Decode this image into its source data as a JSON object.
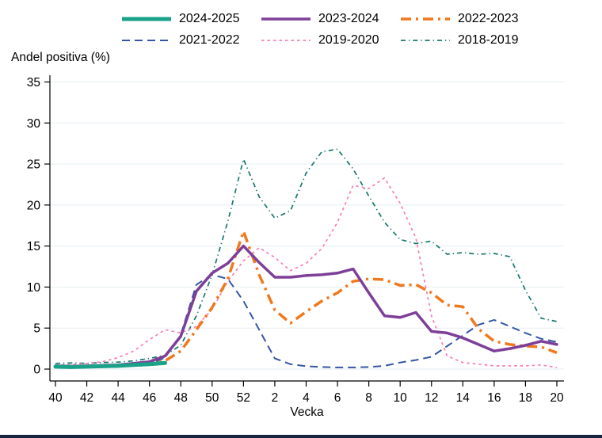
{
  "page": {
    "background": "#ffffff",
    "footer_bar_color": "#16243f"
  },
  "chart_data": {
    "type": "line",
    "title": "Andel positiva (%)",
    "ylabel": "Andel positiva (%)",
    "xlabel": "Vecka",
    "ylim": [
      0,
      35
    ],
    "yticks": [
      0,
      5,
      10,
      15,
      20,
      25,
      30,
      35
    ],
    "grid": "horizontal",
    "gridline_color": "#e5eef1",
    "legend_position": "top-center",
    "categories": [
      "40",
      "41",
      "42",
      "43",
      "44",
      "45",
      "46",
      "47",
      "48",
      "49",
      "50",
      "51",
      "52",
      "1",
      "2",
      "3",
      "4",
      "5",
      "6",
      "7",
      "8",
      "9",
      "10",
      "11",
      "12",
      "13",
      "14",
      "15",
      "16",
      "17",
      "18",
      "19",
      "20"
    ],
    "xtick_labels": [
      "40",
      "42",
      "44",
      "46",
      "48",
      "50",
      "52",
      "2",
      "4",
      "6",
      "8",
      "10",
      "12",
      "14",
      "16",
      "18",
      "20"
    ],
    "legend_rows": [
      [
        "2024-2025",
        "2023-2024",
        "2022-2023"
      ],
      [
        "2021-2022",
        "2019-2020",
        "2018-2019"
      ]
    ],
    "series": [
      {
        "name": "2024-2025",
        "color": "#1aa289",
        "style": "solid-thick",
        "values": [
          0.3,
          0.25,
          0.3,
          0.35,
          0.4,
          0.5,
          0.6,
          0.75,
          null,
          null,
          null,
          null,
          null,
          null,
          null,
          null,
          null,
          null,
          null,
          null,
          null,
          null,
          null,
          null,
          null,
          null,
          null,
          null,
          null,
          null,
          null,
          null,
          null
        ]
      },
      {
        "name": "2023-2024",
        "color": "#7d3f98",
        "style": "solid",
        "values": [
          0.4,
          0.35,
          0.4,
          0.45,
          0.5,
          0.7,
          0.9,
          1.6,
          4.0,
          9.5,
          11.7,
          12.9,
          15.0,
          13.0,
          11.2,
          11.2,
          11.4,
          11.5,
          11.7,
          12.2,
          9.3,
          6.5,
          6.3,
          6.9,
          4.6,
          4.4,
          3.8,
          3.0,
          2.2,
          2.5,
          2.9,
          3.4,
          3.0
        ]
      },
      {
        "name": "2022-2023",
        "color": "#f0791e",
        "style": "dash-dot-thick",
        "values": [
          0.3,
          0.3,
          0.35,
          0.4,
          0.45,
          0.5,
          0.7,
          1.0,
          2.2,
          4.8,
          7.5,
          11.0,
          16.8,
          11.5,
          7.2,
          5.6,
          7.0,
          8.3,
          9.3,
          10.7,
          11.0,
          10.9,
          10.2,
          10.3,
          9.3,
          7.8,
          7.6,
          4.9,
          3.4,
          3.0,
          2.8,
          2.7,
          2.0
        ]
      },
      {
        "name": "2021-2022",
        "color": "#3656a5",
        "style": "dashed",
        "values": [
          0.25,
          0.25,
          0.3,
          0.3,
          0.35,
          0.4,
          0.6,
          1.4,
          4.2,
          10.3,
          11.5,
          11.0,
          8.3,
          4.8,
          1.3,
          0.6,
          0.35,
          0.25,
          0.2,
          0.2,
          0.25,
          0.4,
          0.8,
          1.1,
          1.5,
          2.8,
          4.1,
          5.4,
          6.0,
          5.2,
          4.4,
          3.7,
          3.3
        ]
      },
      {
        "name": "2019-2020",
        "color": "#f87eb5",
        "style": "dotted",
        "values": [
          0.5,
          0.55,
          0.7,
          0.9,
          1.4,
          2.2,
          3.6,
          4.8,
          4.4,
          5.2,
          7.3,
          10.7,
          13.2,
          14.8,
          13.6,
          12.0,
          12.9,
          14.7,
          17.9,
          22.4,
          22.0,
          23.3,
          20.2,
          16.0,
          6.5,
          1.6,
          0.8,
          0.6,
          0.4,
          0.4,
          0.4,
          0.5,
          0.2
        ]
      },
      {
        "name": "2018-2019",
        "color": "#18776f",
        "style": "dash-dot",
        "values": [
          0.7,
          0.75,
          0.7,
          0.8,
          0.85,
          1.0,
          1.3,
          1.7,
          2.9,
          6.5,
          11.5,
          18.0,
          25.6,
          21.0,
          18.4,
          19.3,
          23.9,
          26.5,
          26.8,
          24.4,
          21.1,
          17.9,
          15.8,
          15.3,
          15.6,
          14.0,
          14.2,
          14.0,
          14.1,
          13.7,
          9.6,
          6.2,
          5.8
        ]
      }
    ]
  }
}
